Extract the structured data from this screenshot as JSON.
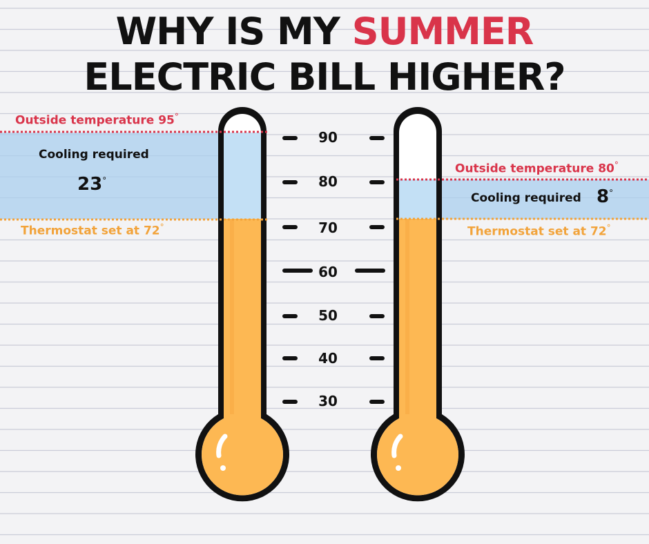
{
  "title": {
    "line1_prefix": "WHY IS MY",
    "line1_accent": "SUMMER",
    "line2": "ELECTRIC BILL HIGHER?"
  },
  "scale": {
    "ticks": [
      "90",
      "80",
      "70",
      "60",
      "50",
      "40",
      "30"
    ]
  },
  "left": {
    "outside_label": "Outside temperature 95",
    "cooling_label": "Cooling required",
    "cooling_value": "23",
    "thermostat_label": "Thermostat set at 72",
    "outside_temp": 95,
    "thermostat_temp": 72
  },
  "right": {
    "outside_label": "Outside temperature 80",
    "cooling_label": "Cooling required",
    "cooling_value": "8",
    "thermostat_label": "Thermostat set at 72",
    "outside_temp": 80,
    "thermostat_temp": 72
  },
  "degree_symbol": "°",
  "colors": {
    "accent_red": "#d9344a",
    "orange": "#f2a33a",
    "mercury": "#fdb853",
    "cooling_band": "#a9cfee",
    "outline": "#111111"
  }
}
